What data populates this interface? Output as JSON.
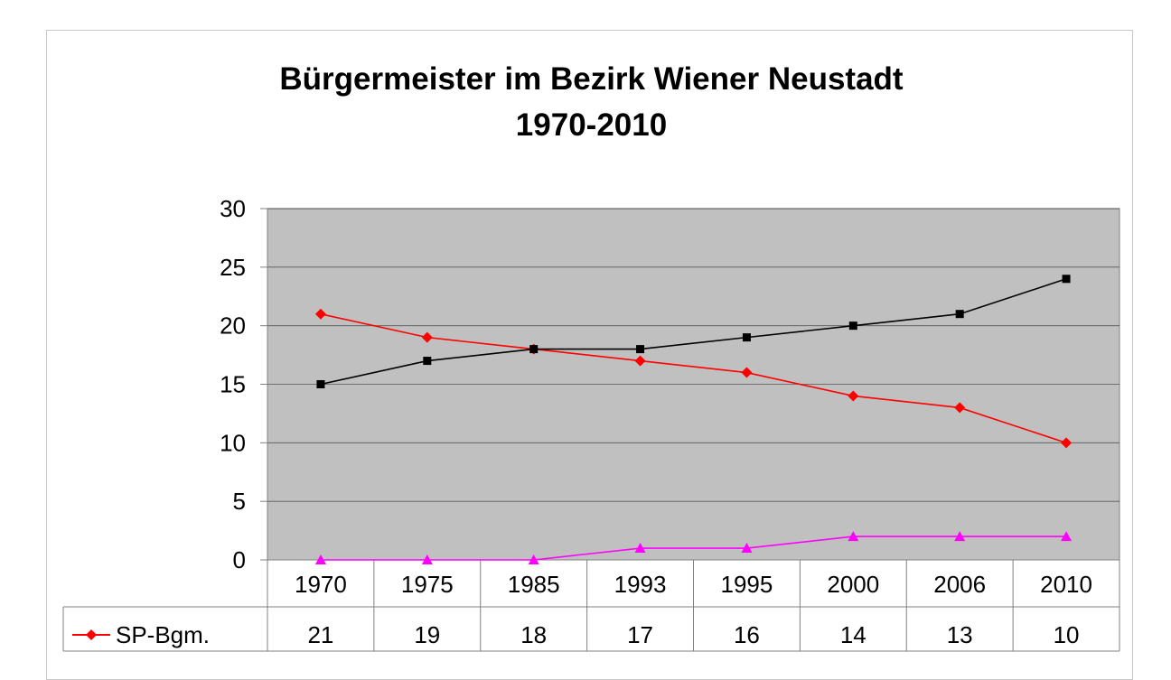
{
  "chart_data": {
    "type": "line",
    "title": [
      "Bürgermeister im Bezirk Wiener Neustadt",
      "1970-2010"
    ],
    "categories": [
      "1970",
      "1975",
      "1985",
      "1993",
      "1995",
      "2000",
      "2006",
      "2010"
    ],
    "ylim": [
      0,
      30
    ],
    "yticks": [
      "0",
      "5",
      "10",
      "15",
      "20",
      "25",
      "30"
    ],
    "grid": true,
    "series": [
      {
        "name": "SP-Bgm.",
        "color": "#ff0000",
        "marker": "diamond",
        "values": [
          21,
          19,
          18,
          17,
          16,
          14,
          13,
          10
        ]
      },
      {
        "name": "",
        "color": "#000000",
        "marker": "square",
        "values": [
          15,
          17,
          18,
          18,
          19,
          20,
          21,
          24
        ]
      },
      {
        "name": "",
        "color": "#ff00ff",
        "marker": "triangle",
        "values": [
          0,
          0,
          0,
          1,
          1,
          2,
          2,
          2
        ]
      }
    ],
    "data_table": {
      "row_label": "SP-Bgm.",
      "values": [
        "21",
        "19",
        "18",
        "17",
        "16",
        "14",
        "13",
        "10"
      ]
    }
  },
  "colors": {
    "plot_background": "#c0c0c0",
    "gridline": "#808080"
  }
}
